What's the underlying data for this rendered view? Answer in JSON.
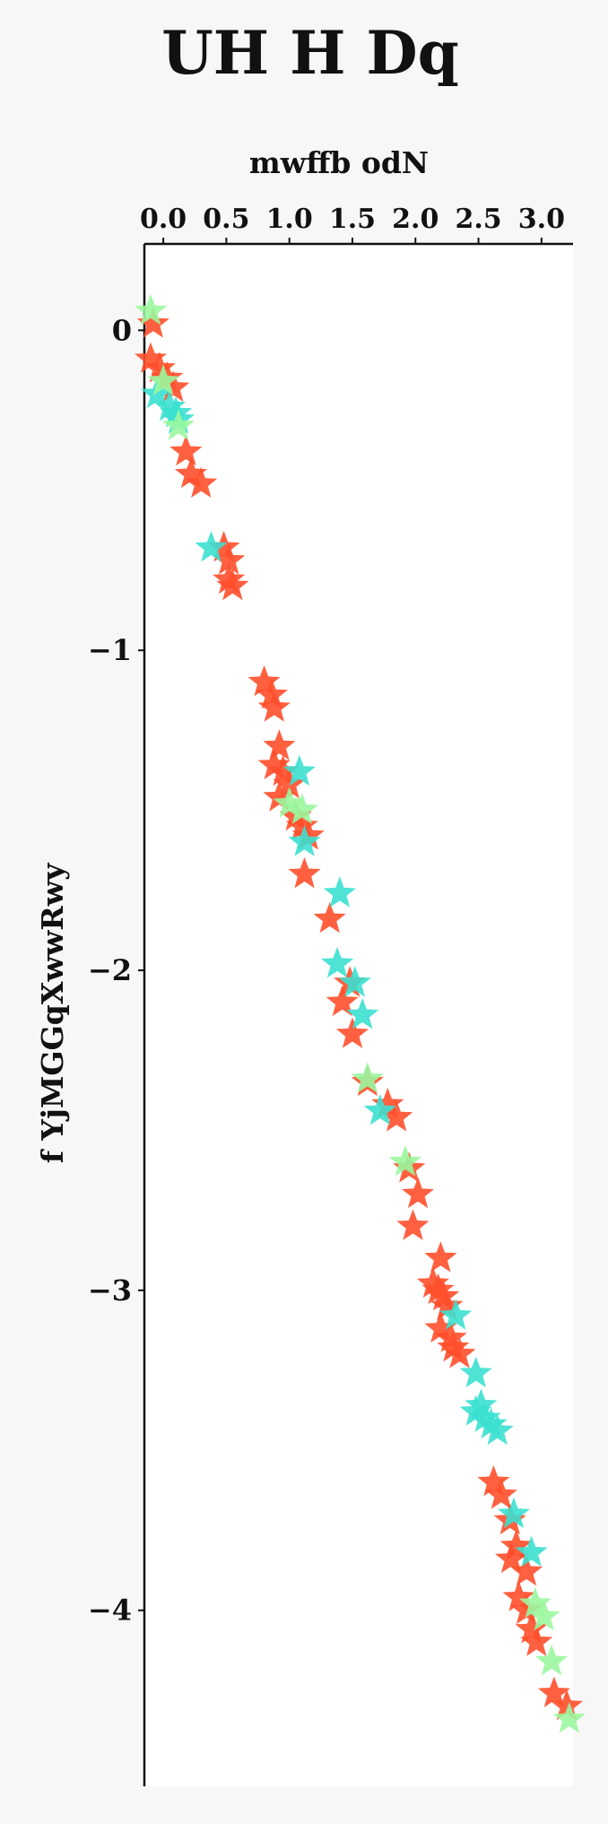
{
  "chart_data": {
    "type": "scatter",
    "title": "UH H Dq",
    "xlabel": "mwffb odN",
    "ylabel": "f YjMGGqXwwRwy",
    "x_axis_position": "top",
    "xlim": [
      -0.15,
      3.25
    ],
    "ylim": [
      -4.55,
      0.27
    ],
    "xticks": [
      0.0,
      0.5,
      1.0,
      1.5,
      2.0,
      2.5,
      3.0
    ],
    "xtick_labels": [
      "0.0",
      "0.5",
      "1.0",
      "1.5",
      "2.0",
      "2.5",
      "3.0"
    ],
    "yticks": [
      0,
      -1,
      -2,
      -3,
      -4
    ],
    "ytick_labels": [
      "0",
      "−1",
      "−2",
      "−3",
      "−4"
    ],
    "grid": false,
    "marker": "star",
    "series": [
      {
        "color": "#ff4f2b",
        "points": [
          [
            -0.08,
            0.02
          ],
          [
            -0.1,
            -0.09
          ],
          [
            -0.03,
            -0.12
          ],
          [
            0.03,
            -0.15
          ],
          [
            0.08,
            -0.18
          ],
          [
            0.18,
            -0.38
          ],
          [
            0.22,
            -0.45
          ],
          [
            0.3,
            -0.48
          ],
          [
            0.48,
            -0.68
          ],
          [
            0.52,
            -0.72
          ],
          [
            0.52,
            -0.78
          ],
          [
            0.55,
            -0.8
          ],
          [
            0.8,
            -1.1
          ],
          [
            0.86,
            -1.14
          ],
          [
            0.88,
            -1.18
          ],
          [
            0.92,
            -1.3
          ],
          [
            0.88,
            -1.36
          ],
          [
            0.95,
            -1.38
          ],
          [
            1.0,
            -1.42
          ],
          [
            0.92,
            -1.46
          ],
          [
            1.05,
            -1.52
          ],
          [
            1.1,
            -1.55
          ],
          [
            1.15,
            -1.58
          ],
          [
            1.12,
            -1.7
          ],
          [
            1.32,
            -1.84
          ],
          [
            1.48,
            -2.04
          ],
          [
            1.42,
            -2.1
          ],
          [
            1.5,
            -2.2
          ],
          [
            1.62,
            -2.35
          ],
          [
            1.78,
            -2.42
          ],
          [
            1.85,
            -2.46
          ],
          [
            1.95,
            -2.62
          ],
          [
            2.02,
            -2.7
          ],
          [
            1.98,
            -2.8
          ],
          [
            2.2,
            -2.9
          ],
          [
            2.14,
            -2.98
          ],
          [
            2.18,
            -3.0
          ],
          [
            2.22,
            -3.02
          ],
          [
            2.25,
            -3.05
          ],
          [
            2.2,
            -3.12
          ],
          [
            2.28,
            -3.15
          ],
          [
            2.3,
            -3.18
          ],
          [
            2.35,
            -3.2
          ],
          [
            2.62,
            -3.6
          ],
          [
            2.68,
            -3.64
          ],
          [
            2.75,
            -3.72
          ],
          [
            2.8,
            -3.8
          ],
          [
            2.76,
            -3.84
          ],
          [
            2.88,
            -3.88
          ],
          [
            2.82,
            -3.96
          ],
          [
            2.88,
            -4.0
          ],
          [
            2.92,
            -4.06
          ],
          [
            2.96,
            -4.1
          ],
          [
            3.1,
            -4.26
          ],
          [
            3.2,
            -4.3
          ]
        ]
      },
      {
        "color": "#3be0d0",
        "points": [
          [
            -0.05,
            -0.2
          ],
          [
            0.05,
            -0.24
          ],
          [
            0.1,
            -0.26
          ],
          [
            0.12,
            -0.28
          ],
          [
            0.38,
            -0.68
          ],
          [
            1.08,
            -1.38
          ],
          [
            1.12,
            -1.6
          ],
          [
            1.4,
            -1.76
          ],
          [
            1.38,
            -1.98
          ],
          [
            1.52,
            -2.04
          ],
          [
            1.58,
            -2.14
          ],
          [
            1.72,
            -2.44
          ],
          [
            2.32,
            -3.08
          ],
          [
            2.48,
            -3.26
          ],
          [
            2.48,
            -3.38
          ],
          [
            2.52,
            -3.36
          ],
          [
            2.55,
            -3.4
          ],
          [
            2.6,
            -3.42
          ],
          [
            2.65,
            -3.44
          ],
          [
            2.78,
            -3.7
          ],
          [
            2.92,
            -3.82
          ]
        ]
      },
      {
        "color": "#9af79e",
        "points": [
          [
            -0.1,
            0.06
          ],
          [
            0.0,
            -0.16
          ],
          [
            0.12,
            -0.3
          ],
          [
            1.0,
            -1.48
          ],
          [
            1.1,
            -1.5
          ],
          [
            1.62,
            -2.34
          ],
          [
            1.92,
            -2.6
          ],
          [
            2.95,
            -3.98
          ],
          [
            3.02,
            -4.02
          ],
          [
            3.08,
            -4.16
          ],
          [
            3.22,
            -4.34
          ]
        ]
      }
    ]
  }
}
